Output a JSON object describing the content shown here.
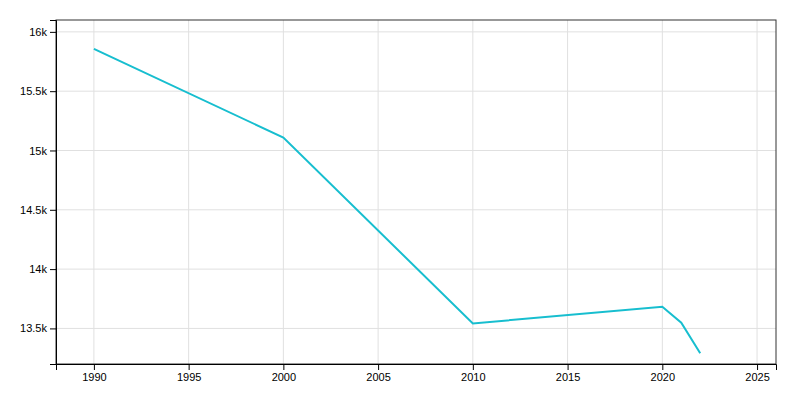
{
  "chart_data": {
    "type": "line",
    "x": [
      1990,
      2000,
      2010,
      2020,
      2021,
      2022
    ],
    "values": [
      15856,
      15109,
      13542,
      13682,
      13548,
      13291
    ],
    "color": "#17becf",
    "xlim": [
      1988,
      2026
    ],
    "ylim": [
      13200,
      16100
    ],
    "xticks": [
      1990,
      1995,
      2000,
      2005,
      2010,
      2015,
      2020,
      2025
    ],
    "yticks": [
      {
        "value": 13500,
        "label": "13.5k"
      },
      {
        "value": 14000,
        "label": "14k"
      },
      {
        "value": 14500,
        "label": "14.5k"
      },
      {
        "value": 15000,
        "label": "15k"
      },
      {
        "value": 15500,
        "label": "15.5k"
      },
      {
        "value": 16000,
        "label": "16k"
      }
    ],
    "grid": true
  }
}
